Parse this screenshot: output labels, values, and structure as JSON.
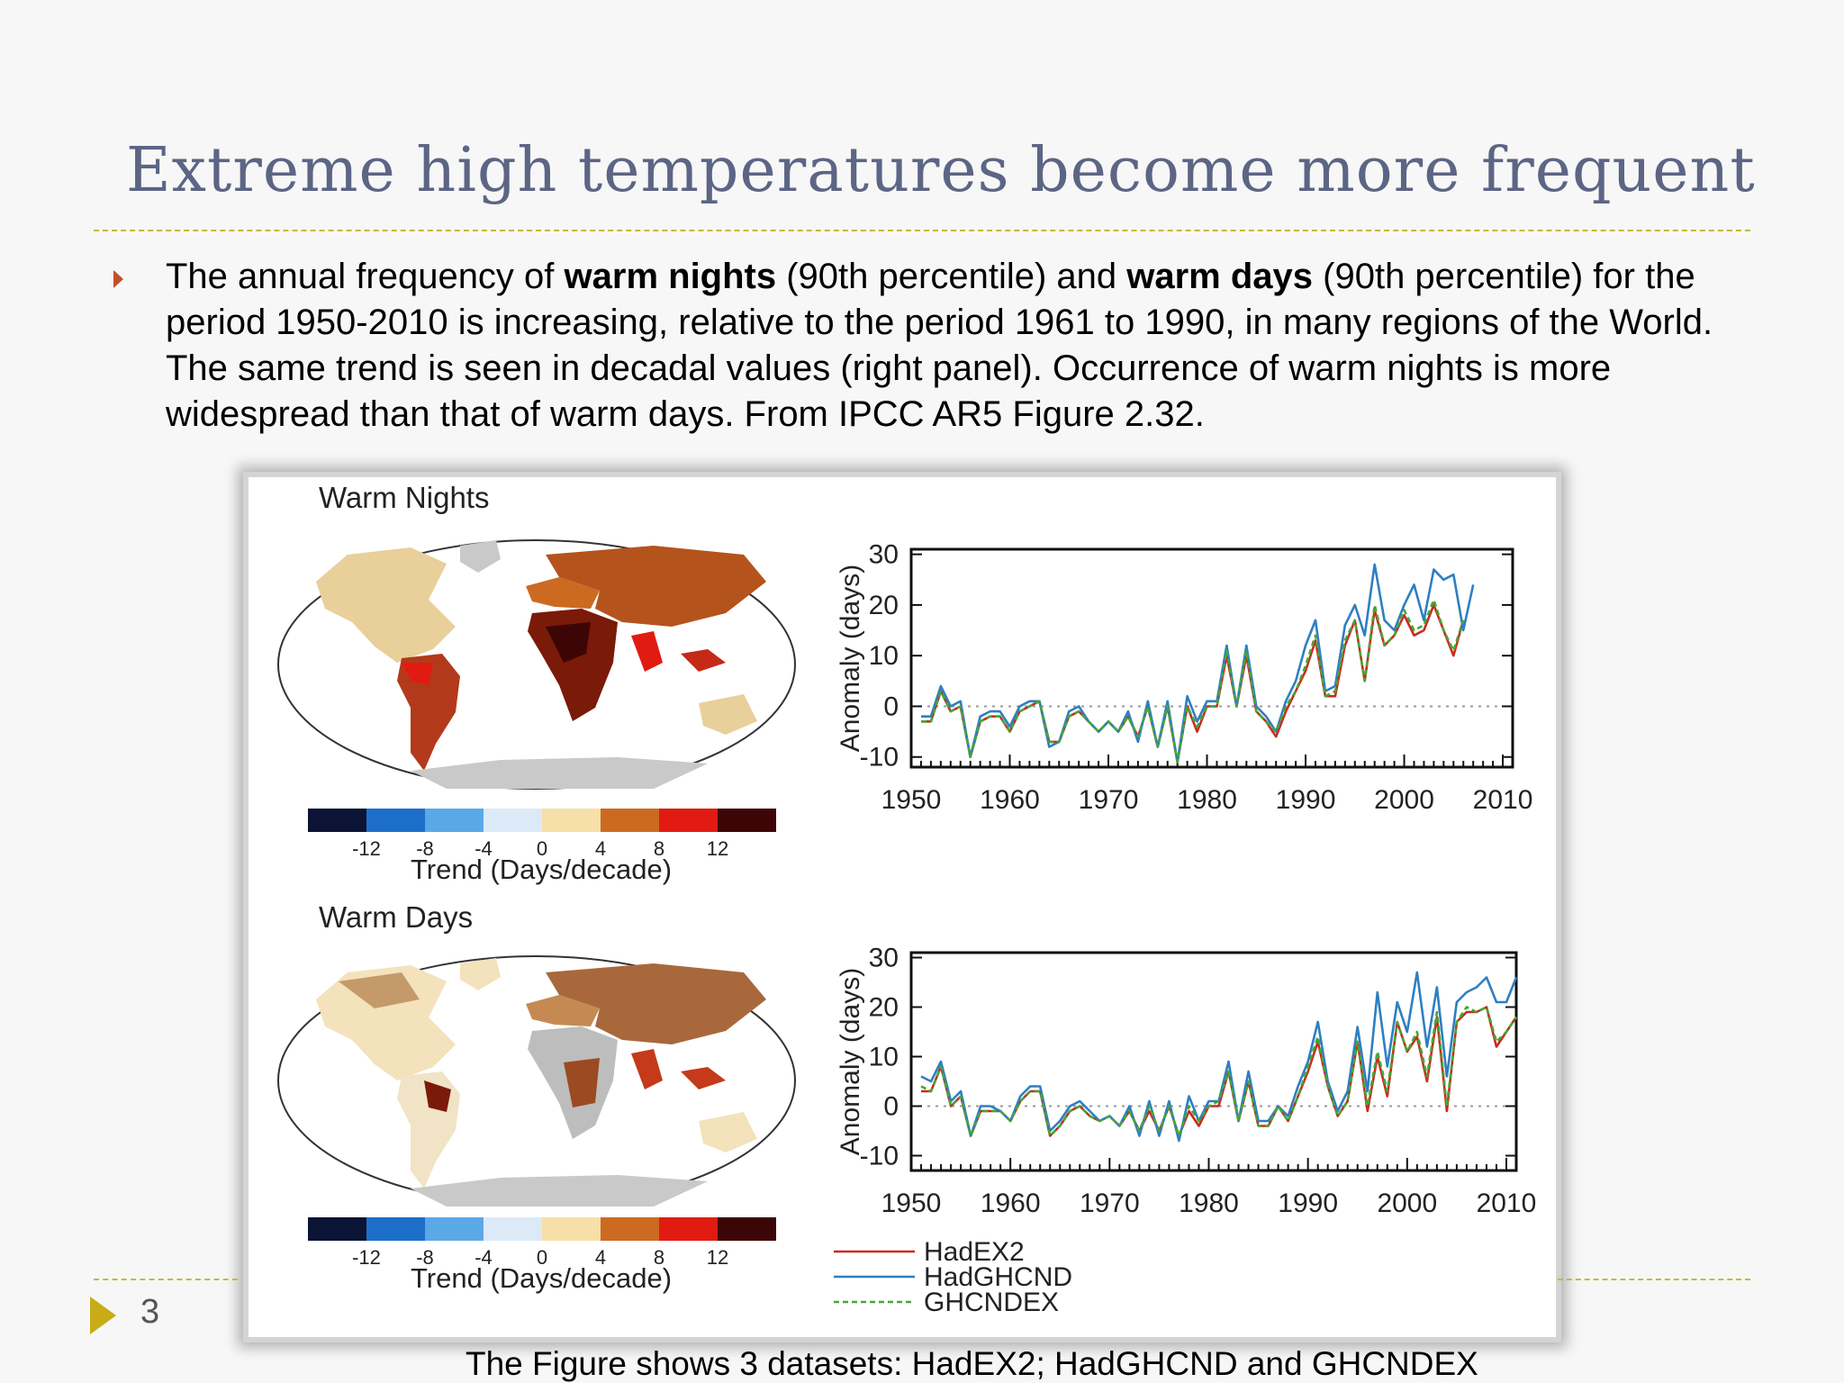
{
  "slide": {
    "title": "Extreme high temperatures become more frequent",
    "bullet": {
      "t1": "The annual frequency of ",
      "b1": "warm nights",
      "t2": " (90th percentile) and  ",
      "b2": "warm  days",
      "t3": " (90th percentile) for the period 1950-2010 is increasing, relative to the period 1961 to 1990, in many regions of the World. The same trend is seen in decadal values (right panel). Occurrence of warm nights is more widespread than that of warm days. From IPCC AR5 Figure 2.32."
    },
    "page_number": "3",
    "caption": "The Figure shows 3 datasets:  HadEX2; HadGHCND and GHCNDEX"
  },
  "colors": {
    "title": "#5d6585",
    "dashed_rule": "#c9b83a",
    "bullet": "#c2502b",
    "page_arrow": "#c7ac16",
    "HadEX2": "#cc2a1f",
    "HadGHCND": "#2e7fc2",
    "GHCNDEX": "#43a832",
    "colorbar": [
      "#0b1434",
      "#1d6ec8",
      "#5ba8e6",
      "#dbeaf6",
      "#f7dfa8",
      "#cc6a22",
      "#e11b12",
      "#3d0606"
    ],
    "land_no_data": "#bdbdbd"
  },
  "maps": [
    {
      "label": "Warm Nights",
      "colorbar_ticks": [
        "-12",
        "-8",
        "-4",
        "0",
        "4",
        "8",
        "12"
      ],
      "colorbar_title": "Trend (Days/decade)"
    },
    {
      "label": "Warm Days",
      "colorbar_ticks": [
        "-12",
        "-8",
        "-4",
        "0",
        "4",
        "8",
        "12"
      ],
      "colorbar_title": "Trend (Days/decade)"
    }
  ],
  "chart_data": [
    {
      "type": "line",
      "ylabel": "Anomaly (days)",
      "xlim": [
        1950,
        2011
      ],
      "ylim": [
        -12,
        31
      ],
      "yticks": [
        "30",
        "20",
        "10",
        "0",
        "-10"
      ],
      "xticks": [
        "1950",
        "1960",
        "1970",
        "1980",
        "1990",
        "2000",
        "2010"
      ],
      "reference_line": 0,
      "x_start": 1951,
      "series": [
        {
          "name": "HadEX2",
          "values": [
            -3,
            -3,
            3,
            -1,
            0,
            -10,
            -3,
            -2,
            -2,
            -5,
            -1,
            0,
            1,
            -7,
            -7,
            -2,
            -1,
            -3,
            -5,
            -3,
            -5,
            -2,
            -6,
            0,
            -8,
            0,
            -11,
            0,
            -5,
            0,
            0,
            10,
            0,
            10,
            -1,
            -3,
            -6,
            -1,
            3,
            7,
            13,
            2,
            2,
            12,
            17,
            5,
            19,
            12,
            14,
            18,
            14,
            15,
            20,
            15,
            10,
            17
          ]
        },
        {
          "name": "HadGHCND",
          "values": [
            -2,
            -2,
            4,
            0,
            1,
            -10,
            -2,
            -1,
            -1,
            -4,
            0,
            1,
            1,
            -8,
            -7,
            -1,
            0,
            -3,
            -5,
            -3,
            -5,
            -1,
            -7,
            1,
            -8,
            1,
            -11,
            2,
            -3,
            1,
            1,
            12,
            0,
            12,
            0,
            -2,
            -5,
            1,
            5,
            12,
            17,
            3,
            4,
            16,
            20,
            14,
            28,
            17,
            15,
            20,
            24,
            17,
            27,
            25,
            26,
            15,
            24
          ]
        },
        {
          "name": "GHCNDEX",
          "values": [
            -3,
            -3,
            3,
            -1,
            0,
            -10,
            -3,
            -2,
            -2,
            -5,
            -1,
            0,
            1,
            -7,
            -7,
            -2,
            -1,
            -3,
            -5,
            -3,
            -5,
            -2,
            -6,
            0,
            -8,
            0,
            -11,
            0,
            -4,
            0,
            0,
            11,
            0,
            11,
            -1,
            -3,
            -5,
            0,
            3,
            8,
            14,
            2,
            3,
            13,
            17,
            5,
            20,
            12,
            14,
            19,
            15,
            16,
            21,
            15,
            11,
            17
          ]
        }
      ]
    },
    {
      "type": "line",
      "ylabel": "Anomaly (days)",
      "xlim": [
        1950,
        2011
      ],
      "ylim": [
        -13,
        31
      ],
      "yticks": [
        "30",
        "20",
        "10",
        "0",
        "-10"
      ],
      "xticks": [
        "1950",
        "1960",
        "1970",
        "1980",
        "1990",
        "2000",
        "2010"
      ],
      "reference_line": 0,
      "x_start": 1951,
      "legend": [
        "HadEX2",
        "HadGHCND",
        "GHCNDEX"
      ],
      "legend_position": "bottom-left",
      "series": [
        {
          "name": "HadEX2",
          "values": [
            3,
            3,
            8,
            0,
            2,
            -6,
            -1,
            -1,
            -1,
            -3,
            1,
            3,
            3,
            -6,
            -4,
            -1,
            0,
            -2,
            -3,
            -2,
            -4,
            -1,
            -5,
            -1,
            -5,
            0,
            -6,
            -1,
            -4,
            0,
            0,
            7,
            -3,
            5,
            -4,
            -4,
            0,
            -3,
            2,
            7,
            13,
            4,
            -2,
            1,
            13,
            -1,
            10,
            2,
            17,
            11,
            14,
            5,
            18,
            -1,
            17,
            19,
            19,
            20,
            12,
            15,
            18
          ]
        },
        {
          "name": "HadGHCND",
          "values": [
            6,
            5,
            9,
            1,
            3,
            -6,
            0,
            0,
            -1,
            -3,
            2,
            4,
            4,
            -5,
            -3,
            0,
            1,
            -1,
            -3,
            -2,
            -4,
            0,
            -6,
            1,
            -6,
            1,
            -7,
            2,
            -3,
            1,
            1,
            9,
            -3,
            7,
            -3,
            -3,
            0,
            -2,
            4,
            9,
            17,
            5,
            -1,
            3,
            16,
            3,
            23,
            8,
            21,
            15,
            27,
            12,
            24,
            6,
            21,
            23,
            24,
            26,
            21,
            21,
            26
          ]
        },
        {
          "name": "GHCNDEX",
          "values": [
            4,
            3,
            8,
            0,
            2,
            -6,
            -1,
            -1,
            -1,
            -3,
            1,
            3,
            3,
            -6,
            -4,
            -1,
            0,
            -2,
            -3,
            -2,
            -4,
            -1,
            -5,
            0,
            -5,
            0,
            -6,
            0,
            -3,
            0,
            1,
            7,
            -3,
            5,
            -4,
            -4,
            0,
            -3,
            2,
            8,
            14,
            4,
            -2,
            1,
            13,
            0,
            11,
            3,
            17,
            11,
            15,
            6,
            19,
            0,
            17,
            20,
            19,
            20,
            13,
            15,
            18
          ]
        }
      ]
    }
  ]
}
